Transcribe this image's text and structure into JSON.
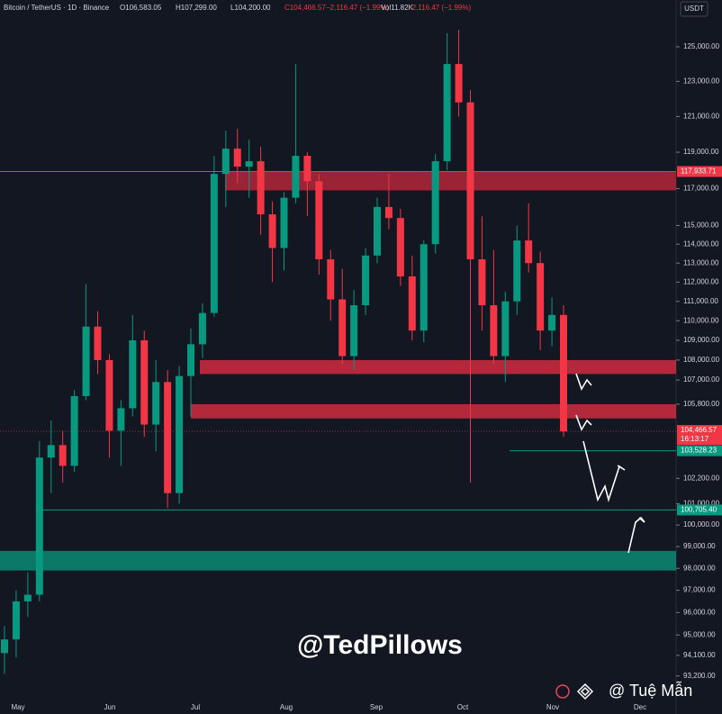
{
  "header": {
    "symbol": "Bitcoin / TetherUS · 1D · Binance",
    "open": "O106,583.05",
    "high": "H107,299.00",
    "low": "L104,200.00",
    "close": "C104,466.57",
    "change": "−2,116.47 (−1.99%)",
    "volume": "Vol11.82K",
    "volume_change": "−2,116.47 (−1.99%)",
    "currency": "USDT"
  },
  "chart_data": {
    "type": "candlestick",
    "log_scale": true,
    "up_color": "#089981",
    "down_color": "#f23645",
    "categories": [
      "May",
      "Jun",
      "Jul",
      "Aug",
      "Sep",
      "Oct",
      "Nov",
      "Dec"
    ],
    "ylim": [
      91560,
      127760
    ],
    "yticks": [
      {
        "value": 125000,
        "label": "125,000.00"
      },
      {
        "value": 123000,
        "label": "123,000.00"
      },
      {
        "value": 121000,
        "label": "121,000.00"
      },
      {
        "value": 119000,
        "label": "119,000.00"
      },
      {
        "value": 117000,
        "label": "117,000.00"
      },
      {
        "value": 115000,
        "label": "115,000.00"
      },
      {
        "value": 114000,
        "label": "114,000.00"
      },
      {
        "value": 113000,
        "label": "113,000.00"
      },
      {
        "value": 112000,
        "label": "112,000.00"
      },
      {
        "value": 111000,
        "label": "111,000.00"
      },
      {
        "value": 110000,
        "label": "110,000.00"
      },
      {
        "value": 109000,
        "label": "109,000.00"
      },
      {
        "value": 108000,
        "label": "108,000.00"
      },
      {
        "value": 107000,
        "label": "107,000.00"
      },
      {
        "value": 105800,
        "label": "105,800.00"
      },
      {
        "value": 102200,
        "label": "102,200.00"
      },
      {
        "value": 101000,
        "label": "101,000.00"
      },
      {
        "value": 100000,
        "label": "100,000.00"
      },
      {
        "value": 99000,
        "label": "99,000.00"
      },
      {
        "value": 98000,
        "label": "98,000.00"
      },
      {
        "value": 97000,
        "label": "97,000.00"
      },
      {
        "value": 96000,
        "label": "96,000.00"
      },
      {
        "value": 95000,
        "label": "95,000.00"
      },
      {
        "value": 94100,
        "label": "94,100.00"
      },
      {
        "value": 93200,
        "label": "93,200.00"
      }
    ],
    "candles": [
      [
        94200,
        95400,
        93300,
        94800
      ],
      [
        94800,
        97000,
        94000,
        96500
      ],
      [
        96500,
        97800,
        95800,
        96800
      ],
      [
        96800,
        104000,
        96500,
        103200
      ],
      [
        103200,
        105000,
        101500,
        103800
      ],
      [
        103800,
        104500,
        102000,
        102800
      ],
      [
        102800,
        106500,
        102500,
        106200
      ],
      [
        106200,
        111900,
        106000,
        109700
      ],
      [
        109700,
        110500,
        107300,
        108000
      ],
      [
        108000,
        108300,
        103200,
        104500
      ],
      [
        104500,
        106000,
        102800,
        105600
      ],
      [
        105600,
        110300,
        105200,
        109000
      ],
      [
        109000,
        109500,
        104200,
        104800
      ],
      [
        104800,
        108000,
        103500,
        106900
      ],
      [
        106900,
        107500,
        100800,
        101500
      ],
      [
        101500,
        107700,
        101000,
        107200
      ],
      [
        107200,
        109600,
        105200,
        108800
      ],
      [
        108800,
        110900,
        108100,
        110400
      ],
      [
        110400,
        118800,
        110200,
        117800
      ],
      [
        117800,
        120200,
        116000,
        119200
      ],
      [
        119200,
        120300,
        117300,
        118200
      ],
      [
        118200,
        119700,
        116500,
        118500
      ],
      [
        118500,
        119300,
        114500,
        115600
      ],
      [
        115600,
        116300,
        112000,
        113800
      ],
      [
        113800,
        116800,
        112600,
        116500
      ],
      [
        116500,
        124000,
        116200,
        118800
      ],
      [
        118800,
        119000,
        115500,
        117400
      ],
      [
        117400,
        117800,
        112400,
        113200
      ],
      [
        113200,
        113700,
        110000,
        111100
      ],
      [
        111100,
        112700,
        107800,
        108200
      ],
      [
        108200,
        111600,
        107500,
        110800
      ],
      [
        110800,
        113800,
        110300,
        113400
      ],
      [
        113400,
        116500,
        113000,
        116000
      ],
      [
        116000,
        117800,
        114800,
        115400
      ],
      [
        115400,
        115900,
        111800,
        112300
      ],
      [
        112300,
        113400,
        109000,
        109500
      ],
      [
        109500,
        114200,
        108900,
        114000
      ],
      [
        114000,
        118900,
        113500,
        118500
      ],
      [
        118500,
        125800,
        118000,
        124000
      ],
      [
        124000,
        126000,
        121000,
        121800
      ],
      [
        121800,
        122500,
        102000,
        113200
      ],
      [
        113200,
        115500,
        109500,
        110800
      ],
      [
        110800,
        113700,
        107800,
        108200
      ],
      [
        108200,
        111500,
        106900,
        111000
      ],
      [
        111000,
        115000,
        110300,
        114200
      ],
      [
        114200,
        116200,
        112500,
        113000
      ],
      [
        113000,
        113600,
        108500,
        109500
      ],
      [
        109500,
        111200,
        108700,
        110300
      ],
      [
        110300,
        110800,
        104200,
        104466.57
      ]
    ],
    "zones": [
      {
        "from": 116900,
        "to": 117933.71,
        "color": "#b3263a"
      },
      {
        "from": 107300,
        "to": 108000,
        "color": "#d12b40"
      },
      {
        "from": 105100,
        "to": 105800,
        "color": "#d12b40"
      },
      {
        "from": 97900,
        "to": 98800,
        "color": "#0a8a74"
      }
    ],
    "price_lines": [
      {
        "value": 117933.71,
        "label": "117,933.71",
        "color": "#f23645"
      },
      {
        "value": 103528.23,
        "label": "103,528.23",
        "color": "#089981"
      },
      {
        "value": 100705.4,
        "label": "100,705.40",
        "color": "#089981"
      }
    ],
    "last_price": {
      "value": 104466.57,
      "label": "104,466.57",
      "timer": "16:13:17",
      "color": "#f23645"
    }
  },
  "watermark": "@TedPillows",
  "credit": "@ Tuệ Mẫn"
}
